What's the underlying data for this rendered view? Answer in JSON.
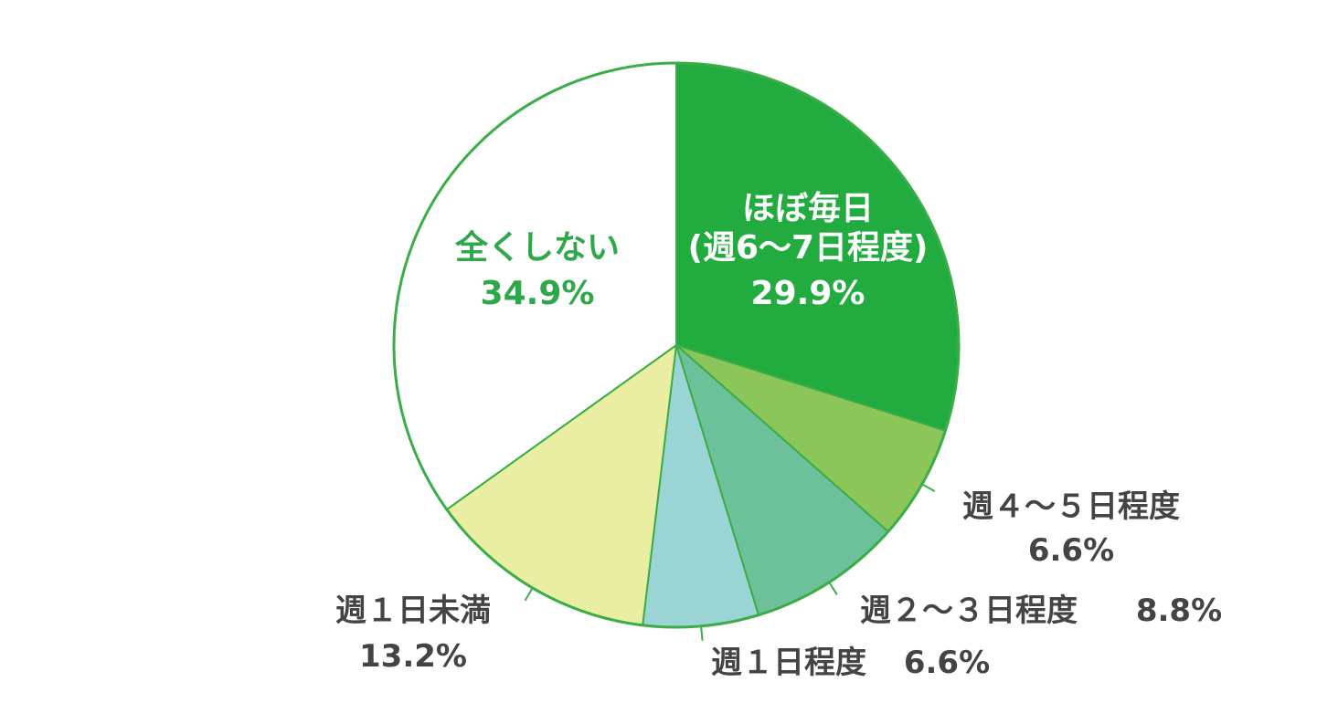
{
  "chart_data": {
    "type": "pie",
    "start_angle_deg": 0,
    "direction": "clockwise",
    "slices": [
      {
        "name": "ほぼ毎日（週6〜7日程度）",
        "label_lines": [
          "ほぼ毎日",
          "(週6〜7日程度)"
        ],
        "value_label": "29.9%",
        "value": 29.9,
        "color": "#22ab3e"
      },
      {
        "name": "週４〜５日程度",
        "label_lines": [
          "週４〜５日程度"
        ],
        "value_label": "6.6%",
        "value": 6.6,
        "color": "#8cc55a"
      },
      {
        "name": "週２〜３日程度",
        "label_lines": [
          "週２〜３日程度"
        ],
        "value_label": "8.8%",
        "value": 8.8,
        "color": "#6dc19a"
      },
      {
        "name": "週１日程度",
        "label_lines": [
          "週１日程度"
        ],
        "value_label": "6.6%",
        "value": 6.6,
        "color": "#9ad4d4"
      },
      {
        "name": "週１日未満",
        "label_lines": [
          "週１日未満"
        ],
        "value_label": "13.2%",
        "value": 13.2,
        "color": "#eaeea2"
      },
      {
        "name": "全くしない",
        "label_lines": [
          "全くしない"
        ],
        "value_label": "34.9%",
        "value": 34.9,
        "color": "#ffffff"
      }
    ],
    "colors": {
      "outline": "#3aad47",
      "label_inside_light": "#ffffff",
      "label_inside_dark": "#2fa84a",
      "label_outside": "#444444"
    }
  }
}
